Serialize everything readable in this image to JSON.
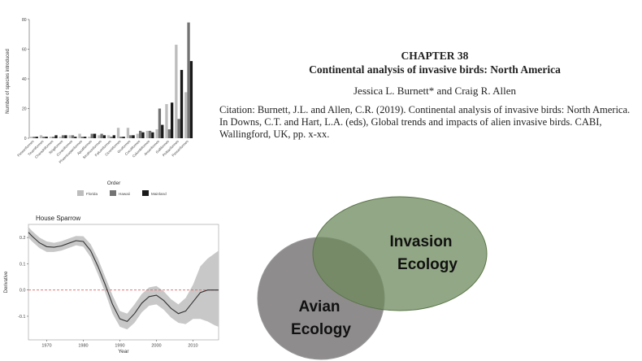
{
  "document": {
    "chapter_number": "CHAPTER 38",
    "chapter_title": "Continental analysis of invasive birds:  North America",
    "authors": "Jessica L. Burnett* and Craig R. Allen",
    "citation": "Citation: Burnett, J.L. and Allen, C.R. (2019). Continental analysis of invasive birds: North America. In Downs, C.T. and Hart, L.A. (eds), Global trends and impacts of alien invasive birds. CABI, Wallingford, UK, pp. x-xx."
  },
  "venn": {
    "left_label_line1": "Avian",
    "left_label_line2": "Ecology",
    "right_label_line1": "Invasion",
    "right_label_line2": "Ecology",
    "left_color": "#8f8c8d",
    "right_color": "#6e8a5c"
  },
  "chart_data": [
    {
      "type": "bar",
      "xlabel": "Order",
      "ylabel": "Number of species introduced",
      "ylim": [
        0,
        80
      ],
      "yticks": [
        0,
        20,
        40,
        60,
        80
      ],
      "categories": [
        "Passeriformes",
        "Tinamiformes",
        "Charadriiformes",
        "Strigiformes",
        "Coraciiformes",
        "Phoenicopteriformes",
        "Apodiformes",
        "Struthioniformes",
        "Falconiformes",
        "Ciconiiformes",
        "Gruiformes",
        "Cuculiformes",
        "Columbiformes",
        "Anseriformes",
        "Galliformes",
        "Psittaciformes",
        "Passeriformes"
      ],
      "series": [
        {
          "name": "Florida",
          "color": "#bdbdbd",
          "values": [
            1,
            2,
            1,
            1,
            2,
            3,
            1,
            2,
            2,
            7,
            7,
            3,
            5,
            6,
            23,
            63,
            31
          ]
        },
        {
          "name": "Hawaii",
          "color": "#737373",
          "values": [
            1,
            1,
            1,
            2,
            2,
            1,
            3,
            3,
            1,
            1,
            2,
            5,
            5,
            20,
            6,
            13,
            78
          ]
        },
        {
          "name": "Mainland",
          "color": "#1a1a1a",
          "values": [
            1,
            1,
            2,
            2,
            1,
            1,
            3,
            2,
            2,
            1,
            2,
            4,
            4,
            9,
            24,
            46,
            52
          ]
        }
      ],
      "legend_position": "bottom"
    },
    {
      "type": "line",
      "title": "House Sparrow",
      "xlabel": "Year",
      "ylabel": "Derivative",
      "xlim": [
        1965,
        2017
      ],
      "ylim": [
        -0.19,
        0.25
      ],
      "xticks": [
        1970,
        1980,
        1990,
        2000,
        2010
      ],
      "yticks": [
        -0.1,
        0.0,
        0.1,
        0.2
      ],
      "reference_line": 0,
      "series": [
        {
          "x": [
            1965,
            1966,
            1968,
            1970,
            1972,
            1974,
            1976,
            1978,
            1980,
            1982,
            1984,
            1986,
            1988,
            1990,
            1992,
            1994,
            1996,
            1998,
            2000,
            2002,
            2004,
            2006,
            2008,
            2010,
            2012,
            2014,
            2016,
            2017
          ],
          "y": [
            0.22,
            0.205,
            0.18,
            0.165,
            0.163,
            0.168,
            0.178,
            0.188,
            0.185,
            0.15,
            0.09,
            0.02,
            -0.055,
            -0.11,
            -0.12,
            -0.09,
            -0.05,
            -0.025,
            -0.02,
            -0.04,
            -0.07,
            -0.09,
            -0.08,
            -0.045,
            -0.01,
            0.0,
            0.0,
            0.0
          ],
          "lower": [
            0.2,
            0.185,
            0.16,
            0.145,
            0.145,
            0.15,
            0.16,
            0.17,
            0.165,
            0.125,
            0.06,
            -0.01,
            -0.09,
            -0.14,
            -0.15,
            -0.125,
            -0.085,
            -0.06,
            -0.055,
            -0.075,
            -0.105,
            -0.125,
            -0.13,
            -0.11,
            -0.11,
            -0.12,
            -0.135,
            -0.14
          ],
          "upper": [
            0.24,
            0.225,
            0.2,
            0.185,
            0.18,
            0.186,
            0.196,
            0.206,
            0.205,
            0.175,
            0.12,
            0.05,
            -0.02,
            -0.08,
            -0.09,
            -0.055,
            -0.015,
            0.01,
            0.015,
            -0.005,
            -0.035,
            -0.055,
            -0.03,
            0.02,
            0.09,
            0.12,
            0.14,
            0.15
          ]
        }
      ]
    }
  ]
}
